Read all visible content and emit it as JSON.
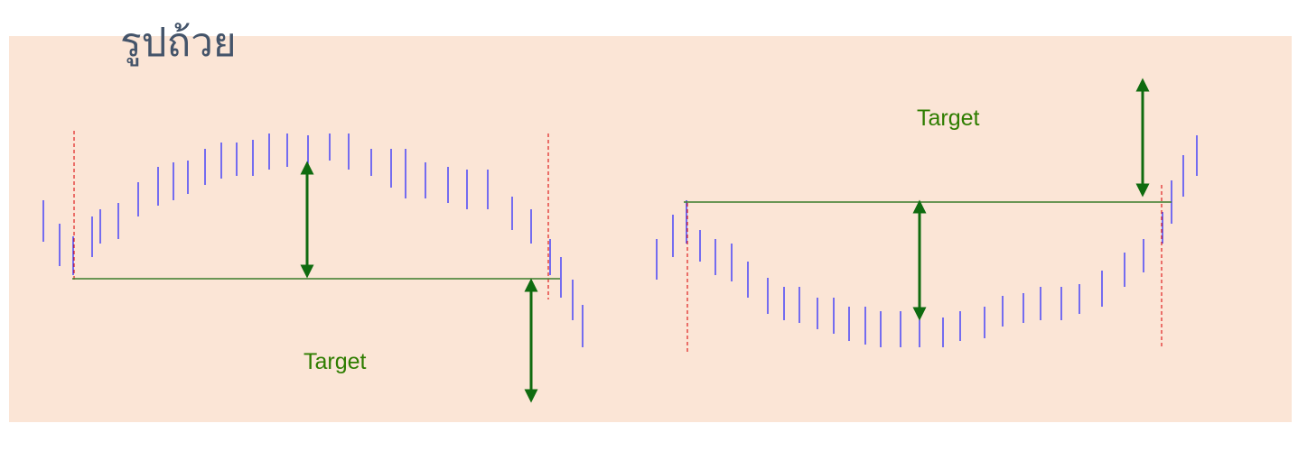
{
  "title": "รูปถ้วย",
  "left_pattern": {
    "label": "Target"
  },
  "right_pattern": {
    "label": "Target"
  }
}
